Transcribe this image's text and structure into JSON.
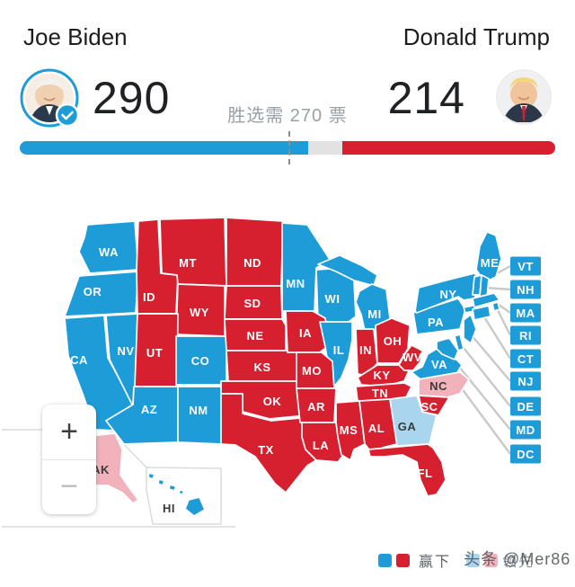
{
  "header": {
    "left_name": "Joe Biden",
    "right_name": "Donald Trump",
    "left_votes": "290",
    "right_votes": "214",
    "need_text": "胜选需 270 票"
  },
  "bar": {
    "dem_pct": 53.9,
    "tie_pct": 6.3,
    "rep_pct": 39.8,
    "marker_pct": 50.2
  },
  "legend": {
    "win_label": "赢下",
    "lead_label": "领先"
  },
  "watermark": "头条 @Mer86",
  "zoom_controls": {
    "zoom_in": "+",
    "zoom_out": "−"
  },
  "colors": {
    "dem_win": "#1E9CD7",
    "rep_win": "#D7202F",
    "dem_lead": "#A9D5EF",
    "rep_lead": "#F2B2BC",
    "bar_tie": "#E2E2E2",
    "leader_line": "#C9C9C9",
    "inset_line": "#DCDCDC",
    "badge_check": "#1E9CD7"
  },
  "map": {
    "states": {
      "WA": {
        "abbr": "WA",
        "result": "dem-win"
      },
      "OR": {
        "abbr": "OR",
        "result": "dem-win"
      },
      "CA": {
        "abbr": "CA",
        "result": "dem-win"
      },
      "NV": {
        "abbr": "NV",
        "result": "dem-win"
      },
      "ID": {
        "abbr": "ID",
        "result": "rep-win"
      },
      "MT": {
        "abbr": "MT",
        "result": "rep-win"
      },
      "WY": {
        "abbr": "WY",
        "result": "rep-win"
      },
      "UT": {
        "abbr": "UT",
        "result": "rep-win"
      },
      "CO": {
        "abbr": "CO",
        "result": "dem-win"
      },
      "AZ": {
        "abbr": "AZ",
        "result": "dem-win"
      },
      "NM": {
        "abbr": "NM",
        "result": "dem-win"
      },
      "ND": {
        "abbr": "ND",
        "result": "rep-win"
      },
      "SD": {
        "abbr": "SD",
        "result": "rep-win"
      },
      "NE": {
        "abbr": "NE",
        "result": "rep-win"
      },
      "KS": {
        "abbr": "KS",
        "result": "rep-win"
      },
      "OK": {
        "abbr": "OK",
        "result": "rep-win"
      },
      "TX": {
        "abbr": "TX",
        "result": "rep-win"
      },
      "MN": {
        "abbr": "MN",
        "result": "dem-win"
      },
      "IA": {
        "abbr": "IA",
        "result": "rep-win"
      },
      "MO": {
        "abbr": "MO",
        "result": "rep-win"
      },
      "AR": {
        "abbr": "AR",
        "result": "rep-win"
      },
      "LA": {
        "abbr": "LA",
        "result": "rep-win"
      },
      "WI": {
        "abbr": "WI",
        "result": "dem-win"
      },
      "IL": {
        "abbr": "IL",
        "result": "dem-win"
      },
      "MI": {
        "abbr": "MI",
        "result": "dem-win"
      },
      "IN": {
        "abbr": "IN",
        "result": "rep-win"
      },
      "OH": {
        "abbr": "OH",
        "result": "rep-win"
      },
      "KY": {
        "abbr": "KY",
        "result": "rep-win"
      },
      "TN": {
        "abbr": "TN",
        "result": "rep-win"
      },
      "MS": {
        "abbr": "MS",
        "result": "rep-win"
      },
      "AL": {
        "abbr": "AL",
        "result": "rep-win"
      },
      "GA": {
        "abbr": "GA",
        "result": "dem-lead"
      },
      "FL": {
        "abbr": "FL",
        "result": "rep-win"
      },
      "SC": {
        "abbr": "SC",
        "result": "rep-win"
      },
      "NC": {
        "abbr": "NC",
        "result": "rep-lead"
      },
      "VA": {
        "abbr": "VA",
        "result": "dem-win"
      },
      "WV": {
        "abbr": "WV",
        "result": "rep-win"
      },
      "PA": {
        "abbr": "PA",
        "result": "dem-win"
      },
      "NY": {
        "abbr": "NY",
        "result": "dem-win"
      },
      "ME": {
        "abbr": "ME",
        "result": "dem-win"
      },
      "AK": {
        "abbr": "AK",
        "result": "rep-lead"
      },
      "HI": {
        "abbr": "HI",
        "result": "dem-win"
      }
    },
    "callouts": [
      {
        "abbr": "VT",
        "result": "dem-win"
      },
      {
        "abbr": "NH",
        "result": "dem-win"
      },
      {
        "abbr": "MA",
        "result": "dem-win"
      },
      {
        "abbr": "RI",
        "result": "dem-win"
      },
      {
        "abbr": "CT",
        "result": "dem-win"
      },
      {
        "abbr": "NJ",
        "result": "dem-win"
      },
      {
        "abbr": "DE",
        "result": "dem-win"
      },
      {
        "abbr": "MD",
        "result": "dem-win"
      },
      {
        "abbr": "DC",
        "result": "dem-win"
      }
    ]
  }
}
